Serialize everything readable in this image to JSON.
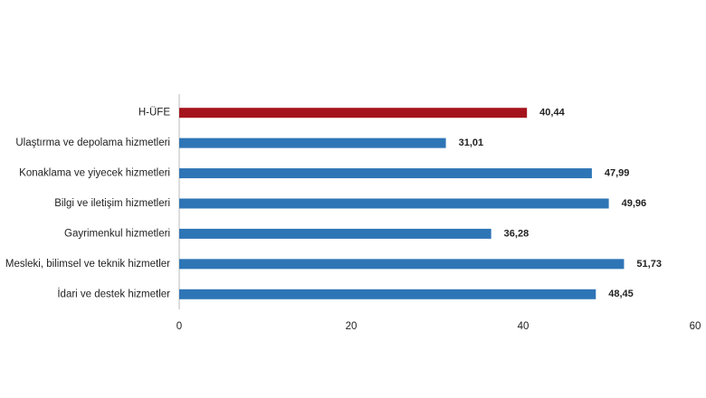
{
  "chart_data": {
    "type": "bar",
    "orientation": "horizontal",
    "categories": [
      "H-ÜFE",
      "Ulaştırma ve depolama hizmetleri",
      "Konaklama ve yiyecek hizmetleri",
      "Bilgi ve iletişim hizmetleri",
      "Gayrimenkul hizmetleri",
      "Mesleki, bilimsel ve teknik hizmetler",
      "İdari ve destek hizmetler"
    ],
    "values": [
      40.44,
      31.01,
      47.99,
      49.96,
      36.28,
      51.73,
      48.45
    ],
    "value_labels": [
      "40,44",
      "31,01",
      "47,99",
      "49,96",
      "36,28",
      "51,73",
      "48,45"
    ],
    "colors": [
      "#a5141c",
      "#2e75b6",
      "#2e75b6",
      "#2e75b6",
      "#2e75b6",
      "#2e75b6",
      "#2e75b6"
    ],
    "xlim": [
      0,
      60
    ],
    "xticks": [
      0,
      20,
      40,
      60
    ],
    "grid": false
  }
}
